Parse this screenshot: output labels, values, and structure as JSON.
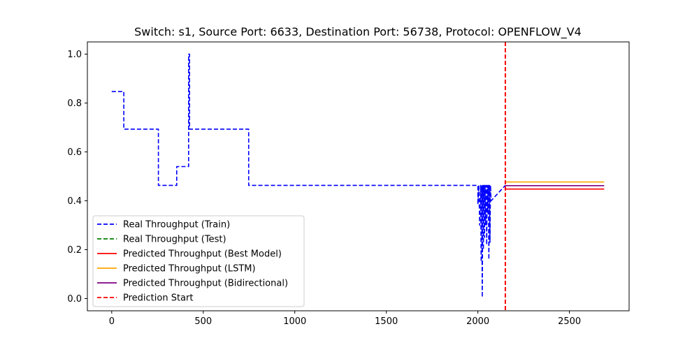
{
  "chart_data": {
    "type": "line",
    "title": "Switch: s1, Source Port: 6633, Destination Port: 56738, Protocol: OPENFLOW_V4",
    "xlabel": "",
    "ylabel": "",
    "xlim": [
      -133,
      2826
    ],
    "ylim": [
      -0.05,
      1.05
    ],
    "x_ticks": [
      0,
      500,
      1000,
      1500,
      2000,
      2500
    ],
    "y_ticks": [
      0.0,
      0.2,
      0.4,
      0.6,
      0.8,
      1.0
    ],
    "x_tick_labels": [
      "0",
      "500",
      "1000",
      "1500",
      "2000",
      "2500"
    ],
    "y_tick_labels": [
      "0.0",
      "0.2",
      "0.4",
      "0.6",
      "0.8",
      "1.0"
    ],
    "grid": false,
    "legend_position": "lower-left",
    "series": [
      {
        "name": "Real Throughput (Train)",
        "color": "#0000ff",
        "style": "dashed",
        "x": [
          0,
          66,
          66,
          255,
          255,
          355,
          355,
          415,
          415,
          420,
          420,
          425,
          425,
          430,
          430,
          748,
          748,
          2000,
          2000,
          2005,
          2010,
          2015,
          2018,
          2021,
          2024,
          2027,
          2030,
          2033,
          2036,
          2039,
          2042,
          2045,
          2048,
          2051,
          2054,
          2057,
          2060,
          2063,
          2066,
          2069,
          2072,
          2150
        ],
        "y": [
          0.847,
          0.847,
          0.693,
          0.693,
          0.463,
          0.463,
          0.54,
          0.54,
          0.54,
          0.54,
          1.0,
          1.0,
          0.693,
          0.693,
          0.693,
          0.693,
          0.463,
          0.463,
          0.385,
          0.463,
          0.3,
          0.463,
          0.15,
          0.463,
          0.005,
          0.463,
          0.2,
          0.463,
          0.25,
          0.463,
          0.3,
          0.463,
          0.22,
          0.463,
          0.35,
          0.463,
          0.16,
          0.463,
          0.23,
          0.463,
          0.4,
          0.463
        ]
      },
      {
        "name": "Real Throughput (Test)",
        "color": "#008000",
        "style": "dashed",
        "x": [],
        "y": []
      },
      {
        "name": "Predicted Throughput (Best Model)",
        "color": "#ff0000",
        "style": "solid",
        "x": [
          2150,
          2690
        ],
        "y": [
          0.448,
          0.448
        ]
      },
      {
        "name": "Predicted Throughput (LSTM)",
        "color": "#ffa500",
        "style": "solid",
        "x": [
          2150,
          2690
        ],
        "y": [
          0.477,
          0.477
        ]
      },
      {
        "name": "Predicted Throughput (Bidirectional)",
        "color": "#800080",
        "style": "solid",
        "x": [
          2150,
          2690
        ],
        "y": [
          0.462,
          0.462
        ]
      },
      {
        "name": "Prediction Start",
        "color": "#ff0000",
        "style": "dashed",
        "vline_x": 2150
      }
    ]
  }
}
